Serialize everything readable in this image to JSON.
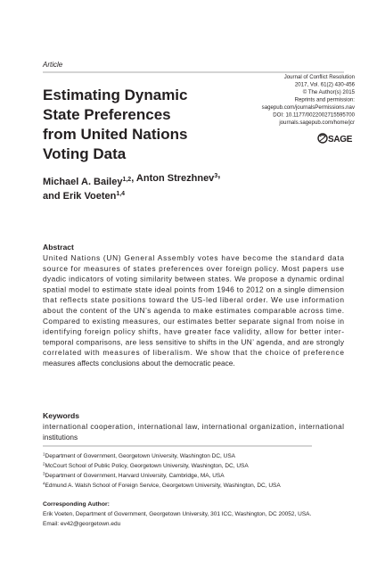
{
  "header": {
    "label": "Article",
    "journal_info": [
      "Journal of Conflict Resolution",
      "2017, Vol. 61(2) 430-456",
      "© The Author(s) 2015",
      "Reprints and permission:",
      "sagepub.com/journalsPermissions.nav",
      "DOI: 10.1177/0022002715595700",
      "journals.sagepub.com/home/jcr"
    ],
    "logo": "SAGE"
  },
  "title_lines": [
    "Estimating Dynamic",
    "State Preferences",
    "from United Nations",
    "Voting Data"
  ],
  "author_lines": [
    [
      {
        "text": "Michael A. Bailey",
        "sup": "1,2"
      },
      {
        "text": ", Anton Strezhnev",
        "sup": "3"
      },
      {
        "text": ","
      }
    ],
    [
      {
        "text": "and Erik Voeten",
        "sup": "1,4"
      }
    ]
  ],
  "abstract": {
    "heading": "Abstract",
    "lines": [
      "United Nations (UN) General Assembly votes have become the standard data",
      "source for measures of states preferences over foreign policy. Most papers use",
      "dyadic indicators of voting similarity between states. We propose a dynamic ordinal",
      "spatial model to estimate state ideal points from 1946 to 2012 on a single dimension",
      "that reflects state positions toward the US-led liberal order. We use information",
      "about the content of the UN’s agenda to make estimates comparable across time.",
      "Compared to existing measures, our estimates better separate signal from noise in",
      "identifying foreign policy shifts, have greater face validity, allow for better inter-",
      "temporal comparisons, are less sensitive to shifts in the UN’ agenda, and are strongly",
      "correlated with measures of liberalism. We show that the choice of preference",
      "measures affects conclusions about the democratic peace."
    ]
  },
  "keywords": {
    "heading": "Keywords",
    "lines": [
      "international cooperation, international law, international organization, international",
      "institutions"
    ]
  },
  "footnotes": [
    {
      "number": "1",
      "text": "Department of Government, Georgetown University, Washington DC, USA"
    },
    {
      "number": "2",
      "text": "McCourt School of Public Policy, Georgetown University, Washington, DC, USA"
    },
    {
      "number": "3",
      "text": "Department of Government, Harvard University, Cambridge, MA, USA"
    },
    {
      "number": "4",
      "text": "Edmund A. Walsh School of Foreign Service, Georgetown University, Washington, DC, USA"
    }
  ],
  "corresponding": {
    "heading": "Corresponding Author:",
    "lines": [
      "Erik Voeten, Department of Government, Georgetown University, 301 ICC, Washington, DC 20052, USA.",
      "Email: ev42@georgetown.edu"
    ]
  }
}
